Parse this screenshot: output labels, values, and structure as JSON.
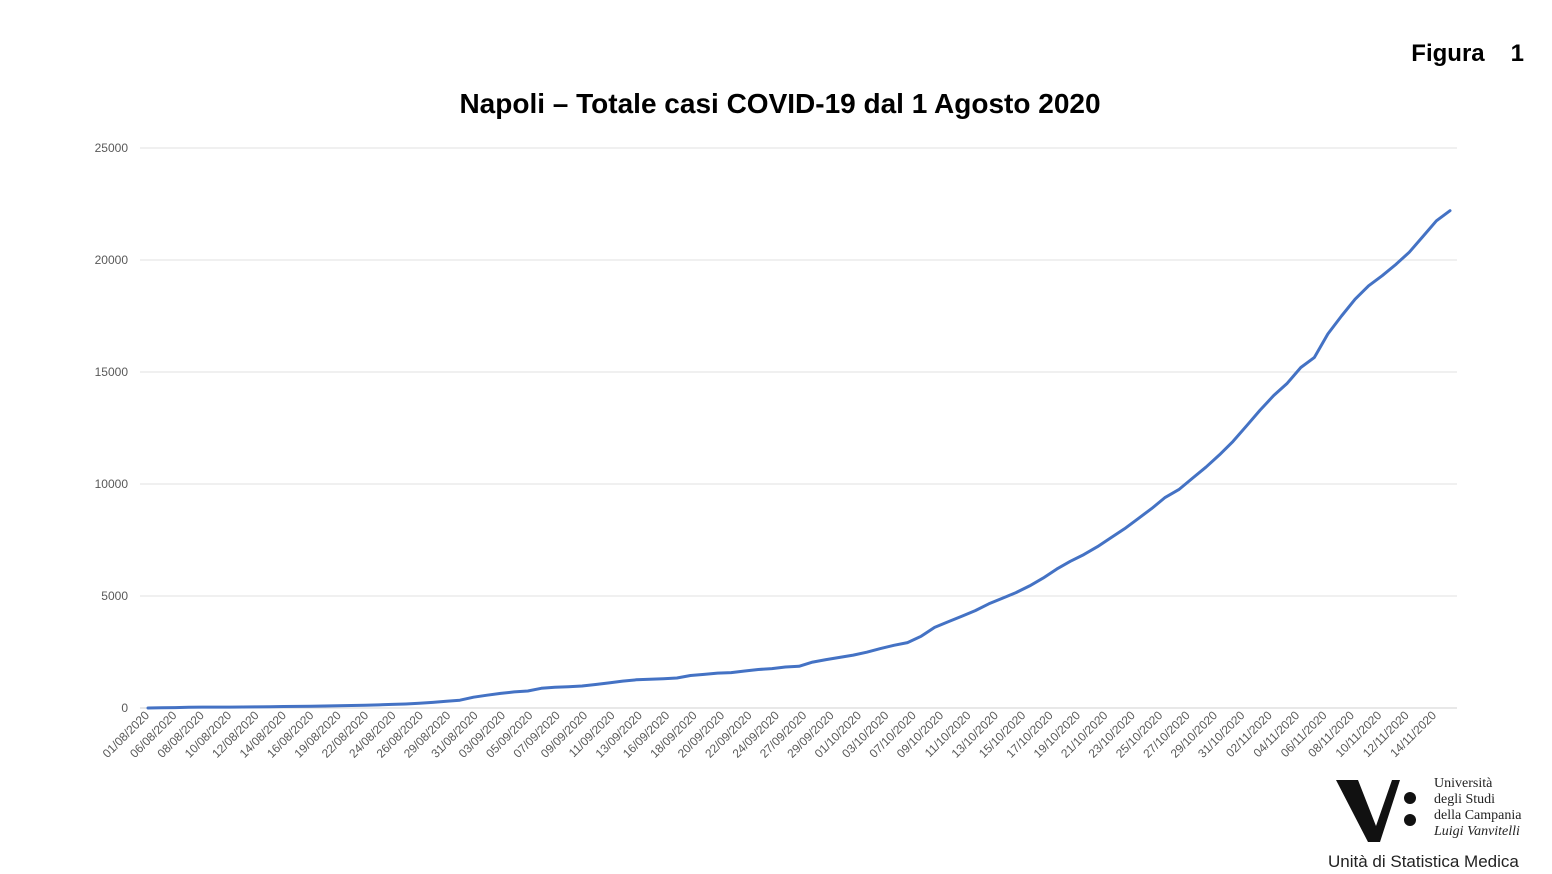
{
  "header": {
    "figura_label": "Figura",
    "figura_number": "1"
  },
  "chart_data": {
    "type": "line",
    "title": "Napoli – Totale casi COVID-19 dal 1 Agosto 2020",
    "xlabel": "",
    "ylabel": "",
    "ylim": [
      0,
      25000
    ],
    "y_ticks": [
      0,
      5000,
      10000,
      15000,
      20000,
      25000
    ],
    "grid": true,
    "legend": "none",
    "line_color": "#4472c4",
    "x_tick_labels": [
      "01/08/2020",
      "06/08/2020",
      "08/08/2020",
      "10/08/2020",
      "12/08/2020",
      "14/08/2020",
      "16/08/2020",
      "19/08/2020",
      "22/08/2020",
      "24/08/2020",
      "26/08/2020",
      "29/08/2020",
      "31/08/2020",
      "03/09/2020",
      "05/09/2020",
      "07/09/2020",
      "09/09/2020",
      "11/09/2020",
      "13/09/2020",
      "16/09/2020",
      "18/09/2020",
      "20/09/2020",
      "22/09/2020",
      "24/09/2020",
      "27/09/2020",
      "29/09/2020",
      "01/10/2020",
      "03/10/2020",
      "07/10/2020",
      "09/10/2020",
      "11/10/2020",
      "13/10/2020",
      "15/10/2020",
      "17/10/2020",
      "19/10/2020",
      "21/10/2020",
      "23/10/2020",
      "25/10/2020",
      "27/10/2020",
      "29/10/2020",
      "31/10/2020",
      "02/11/2020",
      "04/11/2020",
      "06/11/2020",
      "08/11/2020",
      "10/11/2020",
      "12/11/2020",
      "14/11/2020"
    ],
    "series": [
      {
        "values": [
          0,
          10,
          20,
          30,
          40,
          40,
          40,
          45,
          50,
          60,
          65,
          70,
          80,
          90,
          100,
          110,
          120,
          140,
          160,
          180,
          210,
          250,
          300,
          350,
          480,
          570,
          650,
          720,
          760,
          880,
          930,
          950,
          980,
          1050,
          1120,
          1200,
          1260,
          1280,
          1310,
          1340,
          1450,
          1500,
          1560,
          1580,
          1650,
          1720,
          1760,
          1830,
          1860,
          2050,
          2160,
          2260,
          2360,
          2490,
          2650,
          2800,
          2920,
          3200,
          3600,
          3850,
          4100,
          4350,
          4650,
          4900,
          5150,
          5450,
          5800,
          6200,
          6550,
          6850,
          7200,
          7600,
          8000,
          8450,
          8900,
          9400,
          9750,
          10250,
          10750,
          11300,
          11900,
          12600,
          13300,
          13950,
          14500,
          15200,
          15650,
          16700,
          17500,
          18250,
          18850,
          19300,
          19800,
          20350,
          21050,
          21750,
          22200
        ]
      }
    ]
  },
  "logo": {
    "line1": "Università",
    "line2": "degli Studi",
    "line3": "della Campania",
    "line4": "Luigi Vanvitelli",
    "unit_name": "Unità di Statistica Medica"
  }
}
